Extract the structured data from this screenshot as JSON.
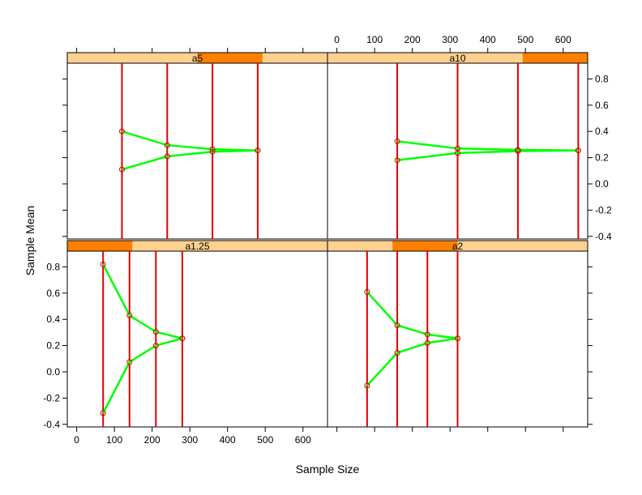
{
  "chart_data": {
    "type": "lattice-line",
    "xlabel": "Sample Size",
    "ylabel": "Sample Mean",
    "xlim": [
      -25,
      665
    ],
    "ylim": [
      -0.42,
      0.92
    ],
    "x_ticks": [
      0,
      100,
      200,
      300,
      400,
      500,
      600
    ],
    "x_tick_labels": [
      "0",
      "100",
      "200",
      "300",
      "400",
      "500",
      "600"
    ],
    "y_ticks": [
      -0.4,
      -0.2,
      0.0,
      0.2,
      0.4,
      0.6,
      0.8
    ],
    "y_tick_labels": [
      "-0.4",
      "-0.2",
      "0.0",
      "0.2",
      "0.4",
      "0.6",
      "0.8"
    ],
    "colors": {
      "strip_bg": "#ffd18f",
      "strip_fg": "#ff7f00",
      "vline": "#e00000",
      "line": "#00ff00",
      "point": "#e00000"
    },
    "panels": [
      {
        "strip": "a1.25",
        "shingle": [
          0.0,
          0.25
        ],
        "sizes": [
          70,
          140,
          210,
          280
        ],
        "upper": [
          0.82,
          0.43,
          0.305,
          0.255
        ],
        "lower": [
          -0.315,
          0.075,
          0.2,
          0.255
        ]
      },
      {
        "strip": "a2",
        "shingle": [
          0.25,
          0.5
        ],
        "sizes": [
          80,
          160,
          240,
          320
        ],
        "upper": [
          0.61,
          0.355,
          0.285,
          0.255
        ],
        "lower": [
          -0.105,
          0.145,
          0.22,
          0.255
        ]
      },
      {
        "strip": "a5",
        "shingle": [
          0.5,
          0.75
        ],
        "sizes": [
          120,
          240,
          360,
          480
        ],
        "upper": [
          0.4,
          0.295,
          0.265,
          0.255
        ],
        "lower": [
          0.11,
          0.21,
          0.245,
          0.255
        ]
      },
      {
        "strip": "a10",
        "shingle": [
          0.75,
          1.0
        ],
        "sizes": [
          160,
          320,
          480,
          640
        ],
        "upper": [
          0.325,
          0.27,
          0.26,
          0.255
        ],
        "lower": [
          0.18,
          0.235,
          0.25,
          0.255
        ]
      }
    ]
  }
}
